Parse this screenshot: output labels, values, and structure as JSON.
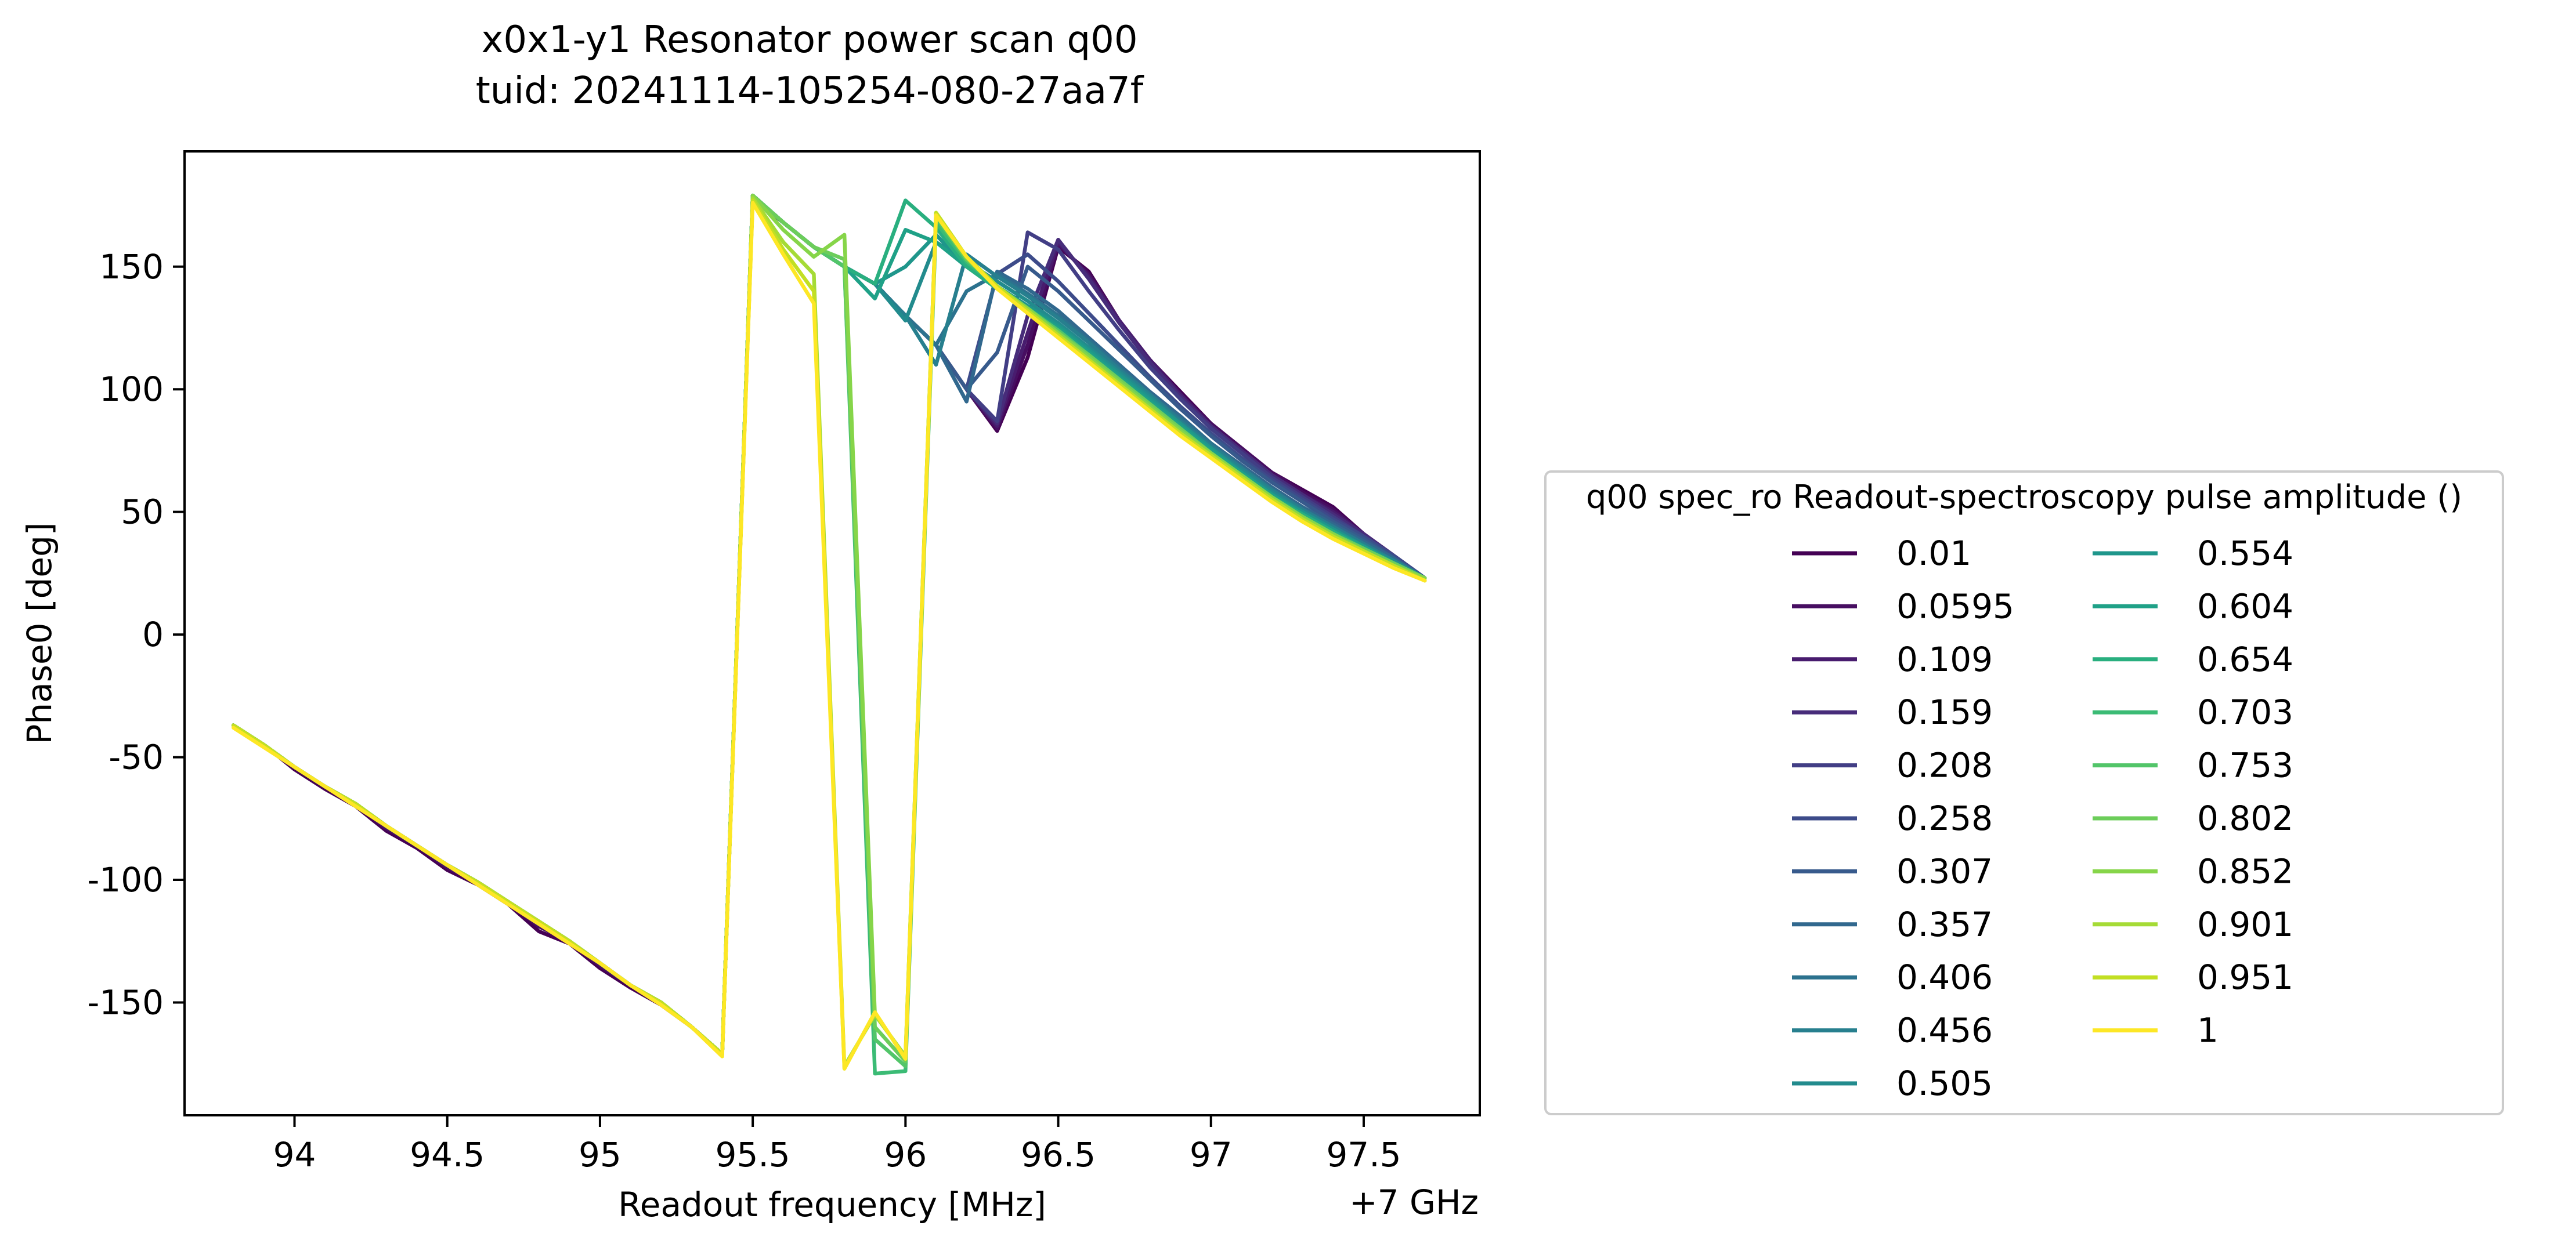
{
  "chart_data": {
    "type": "line",
    "title_line1": "x0x1-y1 Resonator power scan q00",
    "title_line2": "tuid: 20241114-105254-080-27aa7f",
    "xlabel": "Readout frequency [MHz]",
    "ylabel": "Phase0 [deg]",
    "x_offset_label": "+7 GHz",
    "xlim": [
      93.64,
      97.88
    ],
    "ylim": [
      -196,
      197
    ],
    "x_ticks": [
      94,
      94.5,
      95,
      95.5,
      96,
      96.5,
      97,
      97.5
    ],
    "x_tick_labels": [
      "94",
      "94.5",
      "95",
      "95.5",
      "96",
      "96.5",
      "97",
      "97.5"
    ],
    "y_ticks": [
      -150,
      -100,
      -50,
      0,
      50,
      100,
      150
    ],
    "y_tick_labels": [
      "-150",
      "-100",
      "-50",
      "0",
      "50",
      "100",
      "150"
    ],
    "grid": false,
    "legend_title": "q00 spec_ro Readout-spectroscopy pulse amplitude ()",
    "legend_position": "right",
    "x": [
      93.8,
      93.9,
      94.0,
      94.1,
      94.2,
      94.3,
      94.4,
      94.5,
      94.6,
      94.7,
      94.8,
      94.9,
      95.0,
      95.1,
      95.2,
      95.3,
      95.4,
      95.5,
      95.6,
      95.7,
      95.8,
      95.9,
      96.0,
      96.1,
      96.2,
      96.3,
      96.4,
      96.5,
      96.6,
      96.7,
      96.8,
      96.9,
      97.0,
      97.1,
      97.2,
      97.3,
      97.4,
      97.5,
      97.6,
      97.7
    ],
    "series": [
      {
        "name": "0.01",
        "color": "#440154",
        "values": [
          -37,
          -45,
          -55,
          -63,
          -70,
          -80,
          -87,
          -96,
          -102,
          -110,
          -121,
          -126,
          -136,
          -144,
          -151,
          -160,
          -171,
          178,
          168,
          158,
          150,
          143,
          130,
          118,
          100,
          83,
          113,
          158,
          148,
          128,
          112,
          99,
          86,
          76,
          66,
          59,
          52,
          41,
          32,
          23
        ]
      },
      {
        "name": "0.0595",
        "color": "#470e61",
        "values": [
          -37,
          -45,
          -54,
          -62,
          -69,
          -79,
          -86,
          -95,
          -101,
          -109,
          -119,
          -125,
          -135,
          -143,
          -150,
          -160,
          -171,
          178,
          168,
          158,
          150,
          143,
          130,
          118,
          100,
          84,
          118,
          159,
          147,
          128,
          112,
          98,
          86,
          76,
          66,
          58,
          51,
          41,
          32,
          23
        ]
      },
      {
        "name": "0.109",
        "color": "#481c6e",
        "values": [
          -37,
          -45,
          -54,
          -62,
          -69,
          -78,
          -86,
          -94,
          -101,
          -109,
          -118,
          -125,
          -134,
          -143,
          -150,
          -160,
          -171,
          178,
          168,
          158,
          150,
          143,
          130,
          118,
          100,
          85,
          123,
          160,
          146,
          128,
          112,
          98,
          85,
          75,
          65,
          57,
          50,
          41,
          32,
          23
        ]
      },
      {
        "name": "0.159",
        "color": "#472c7a",
        "values": [
          -37,
          -45,
          -54,
          -62,
          -69,
          -78,
          -86,
          -94,
          -101,
          -109,
          -117,
          -125,
          -134,
          -143,
          -150,
          -160,
          -171,
          179,
          168,
          158,
          150,
          143,
          130,
          118,
          100,
          86,
          130,
          161,
          145,
          127,
          111,
          97,
          85,
          75,
          65,
          57,
          49,
          41,
          32,
          23
        ]
      },
      {
        "name": "0.208",
        "color": "#423e85",
        "values": [
          -37,
          -45,
          -54,
          -62,
          -69,
          -78,
          -86,
          -94,
          -101,
          -109,
          -117,
          -125,
          -134,
          -143,
          -150,
          -160,
          -171,
          179,
          168,
          158,
          150,
          143,
          130,
          118,
          100,
          87,
          164,
          157,
          140,
          124,
          109,
          96,
          84,
          74,
          64,
          56,
          48,
          40,
          32,
          23
        ]
      },
      {
        "name": "0.258",
        "color": "#3d4b8a",
        "values": [
          -37,
          -45,
          -54,
          -62,
          -69,
          -78,
          -86,
          -94,
          -101,
          -109,
          -117,
          -125,
          -134,
          -143,
          -150,
          -160,
          -171,
          179,
          168,
          158,
          150,
          143,
          130,
          118,
          100,
          147,
          155,
          144,
          131,
          118,
          105,
          93,
          82,
          72,
          63,
          55,
          47,
          40,
          32,
          23
        ]
      },
      {
        "name": "0.307",
        "color": "#375a8c",
        "values": [
          -37,
          -45,
          -54,
          -62,
          -69,
          -78,
          -86,
          -94,
          -101,
          -109,
          -117,
          -125,
          -134,
          -143,
          -150,
          -160,
          -171,
          179,
          168,
          158,
          150,
          143,
          130,
          118,
          100,
          115,
          150,
          140,
          128,
          116,
          104,
          92,
          81,
          71,
          62,
          54,
          46,
          39,
          31,
          23
        ]
      },
      {
        "name": "0.357",
        "color": "#31688e",
        "values": [
          -37,
          -45,
          -54,
          -62,
          -69,
          -78,
          -86,
          -94,
          -101,
          -109,
          -117,
          -125,
          -134,
          -143,
          -150,
          -160,
          -171,
          179,
          168,
          158,
          150,
          143,
          130,
          118,
          95,
          148,
          141,
          132,
          121,
          110,
          99,
          89,
          78,
          69,
          60,
          52,
          45,
          38,
          31,
          23
        ]
      },
      {
        "name": "0.406",
        "color": "#2c728e",
        "values": [
          -37,
          -45,
          -54,
          -62,
          -69,
          -78,
          -86,
          -94,
          -101,
          -109,
          -117,
          -125,
          -134,
          -143,
          -150,
          -160,
          -171,
          179,
          168,
          158,
          150,
          143,
          130,
          118,
          140,
          147,
          139,
          130,
          120,
          109,
          98,
          88,
          78,
          68,
          59,
          51,
          44,
          37,
          30,
          23
        ]
      },
      {
        "name": "0.456",
        "color": "#277f8e",
        "values": [
          -37,
          -45,
          -54,
          -62,
          -69,
          -78,
          -86,
          -94,
          -101,
          -109,
          -117,
          -125,
          -134,
          -143,
          -150,
          -160,
          -171,
          179,
          168,
          158,
          150,
          143,
          130,
          110,
          155,
          146,
          138,
          129,
          119,
          108,
          98,
          87,
          77,
          68,
          59,
          51,
          44,
          37,
          30,
          23
        ]
      },
      {
        "name": "0.505",
        "color": "#228b8d",
        "values": [
          -37,
          -45,
          -54,
          -62,
          -69,
          -78,
          -86,
          -94,
          -101,
          -109,
          -117,
          -125,
          -134,
          -143,
          -150,
          -160,
          -171,
          179,
          168,
          158,
          150,
          143,
          128,
          160,
          152,
          144,
          136,
          127,
          117,
          107,
          97,
          86,
          76,
          67,
          58,
          50,
          43,
          36,
          30,
          23
        ]
      },
      {
        "name": "0.554",
        "color": "#1f968b",
        "values": [
          -37,
          -45,
          -54,
          -62,
          -69,
          -78,
          -86,
          -94,
          -101,
          -109,
          -117,
          -125,
          -134,
          -143,
          -150,
          -160,
          -171,
          179,
          168,
          158,
          150,
          143,
          150,
          163,
          150,
          142,
          134,
          126,
          116,
          106,
          96,
          86,
          76,
          66,
          57,
          50,
          43,
          36,
          29,
          23
        ]
      },
      {
        "name": "0.604",
        "color": "#1fa187",
        "values": [
          -37,
          -45,
          -54,
          -62,
          -69,
          -78,
          -86,
          -94,
          -101,
          -109,
          -117,
          -125,
          -134,
          -143,
          -150,
          -160,
          -171,
          179,
          168,
          158,
          150,
          137,
          165,
          160,
          150,
          141,
          133,
          125,
          115,
          105,
          95,
          85,
          75,
          66,
          57,
          49,
          42,
          36,
          29,
          23
        ]
      },
      {
        "name": "0.654",
        "color": "#29af7f",
        "values": [
          -37,
          -45,
          -54,
          -62,
          -69,
          -78,
          -86,
          -94,
          -101,
          -109,
          -117,
          -125,
          -134,
          -143,
          -150,
          -160,
          -171,
          179,
          168,
          158,
          150,
          143,
          177,
          166,
          150,
          141,
          133,
          124,
          114,
          104,
          94,
          84,
          74,
          65,
          56,
          49,
          42,
          35,
          29,
          23
        ]
      },
      {
        "name": "0.703",
        "color": "#3bbb75",
        "values": [
          -37,
          -45,
          -54,
          -62,
          -69,
          -78,
          -86,
          -94,
          -101,
          -109,
          -117,
          -125,
          -134,
          -143,
          -150,
          -160,
          -171,
          179,
          168,
          158,
          150,
          -179,
          -178,
          168,
          152,
          142,
          133,
          124,
          114,
          104,
          94,
          84,
          74,
          65,
          56,
          48,
          41,
          35,
          29,
          23
        ]
      },
      {
        "name": "0.753",
        "color": "#52c569",
        "values": [
          -37,
          -45,
          -54,
          -62,
          -69,
          -78,
          -86,
          -94,
          -101,
          -109,
          -117,
          -125,
          -134,
          -143,
          -150,
          -160,
          -171,
          179,
          168,
          158,
          150,
          -165,
          -176,
          170,
          153,
          142,
          133,
          124,
          114,
          104,
          94,
          84,
          74,
          65,
          56,
          48,
          41,
          35,
          29,
          23
        ]
      },
      {
        "name": "0.802",
        "color": "#6ccd5a",
        "values": [
          -37,
          -45,
          -54,
          -62,
          -69,
          -78,
          -86,
          -94,
          -101,
          -109,
          -117,
          -125,
          -134,
          -143,
          -150,
          -160,
          -171,
          179,
          168,
          158,
          153,
          -160,
          -174,
          171,
          153,
          142,
          133,
          123,
          114,
          104,
          94,
          84,
          74,
          65,
          56,
          48,
          41,
          35,
          29,
          23
        ]
      },
      {
        "name": "0.852",
        "color": "#86d549",
        "values": [
          -37,
          -45,
          -54,
          -62,
          -69,
          -78,
          -86,
          -94,
          -101,
          -109,
          -117,
          -125,
          -134,
          -143,
          -150,
          -160,
          -171,
          179,
          165,
          154,
          163,
          -155,
          -172,
          172,
          154,
          142,
          133,
          123,
          113,
          103,
          93,
          83,
          74,
          65,
          56,
          48,
          41,
          34,
          28,
          23
        ]
      },
      {
        "name": "0.901",
        "color": "#a5db36",
        "values": [
          -37,
          -45,
          -54,
          -62,
          -69,
          -78,
          -86,
          -94,
          -101,
          -109,
          -117,
          -125,
          -134,
          -143,
          -150,
          -160,
          -171,
          178,
          160,
          147,
          -176,
          -155,
          -172,
          172,
          154,
          142,
          132,
          122,
          112,
          102,
          92,
          82,
          73,
          64,
          55,
          47,
          40,
          34,
          28,
          22
        ]
      },
      {
        "name": "0.951",
        "color": "#c2df23",
        "values": [
          -37,
          -45,
          -54,
          -62,
          -69,
          -78,
          -86,
          -94,
          -101,
          -109,
          -117,
          -125,
          -134,
          -143,
          -150,
          -160,
          -171,
          177,
          157,
          140,
          -177,
          -154,
          -173,
          172,
          154,
          142,
          132,
          122,
          112,
          102,
          92,
          82,
          73,
          64,
          55,
          47,
          40,
          34,
          28,
          22
        ]
      },
      {
        "name": "1",
        "color": "#fde725",
        "values": [
          -38,
          -46,
          -54,
          -62,
          -70,
          -78,
          -86,
          -94,
          -102,
          -110,
          -118,
          -126,
          -134,
          -143,
          -151,
          -160,
          -172,
          176,
          155,
          135,
          -177,
          -154,
          -173,
          171,
          154,
          141,
          131,
          121,
          111,
          101,
          91,
          81,
          72,
          63,
          54,
          46,
          39,
          33,
          27,
          22
        ]
      }
    ]
  }
}
